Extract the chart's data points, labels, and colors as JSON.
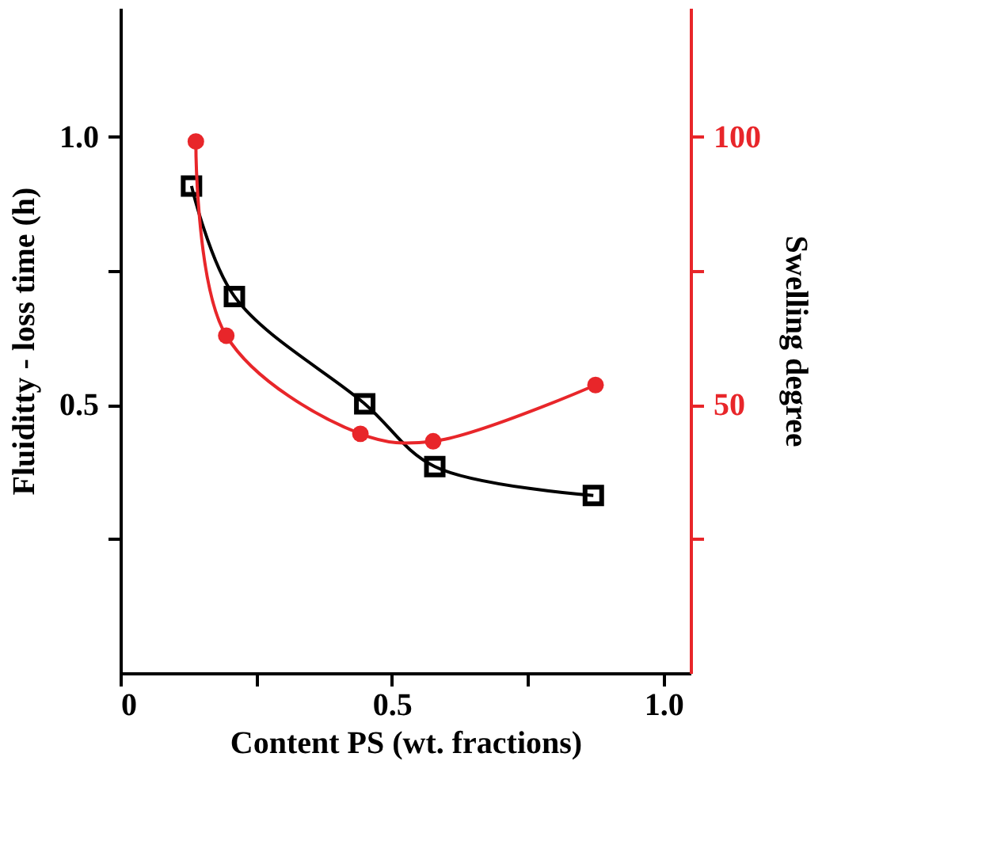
{
  "chart_data": {
    "type": "line",
    "xlabel": "Content PS (wt. fractions)",
    "ylabel": "Fluiditty - loss time (h)",
    "y2label": "Swelling degree",
    "xlim": [
      0,
      1.05
    ],
    "xticks": [
      0,
      {
        "value": 0.25,
        "label": null
      },
      {
        "value": 0.5,
        "label": "0.5"
      },
      {
        "value": 0.75,
        "label": null
      },
      {
        "value": 1.0,
        "label": "1.0"
      }
    ],
    "ylim": [
      0,
      1.24
    ],
    "yticks": [
      {
        "value": 0.25,
        "label": null
      },
      {
        "value": 0.5,
        "label": "0.5"
      },
      {
        "value": 0.75,
        "label": null
      },
      {
        "value": 1.0,
        "label": "1.0"
      }
    ],
    "y2lim": [
      0,
      124
    ],
    "y2ticks": [
      {
        "value": 25,
        "label": null
      },
      50,
      {
        "value": 75,
        "label": null
      },
      100
    ],
    "grid": false,
    "line_style": "solid",
    "series": [
      {
        "color": "#000000",
        "marker": "square",
        "x": [
          0.131,
          0.21,
          0.45,
          0.579,
          0.871
        ],
        "values": [
          0.908,
          0.702,
          0.502,
          0.385,
          0.331
        ]
      },
      {
        "color": "#e8262a",
        "marker": "circle",
        "axis": "y2",
        "x": [
          0.139,
          0.195,
          0.442,
          0.576,
          0.875
        ],
        "values": [
          99.1,
          62.9,
          44.6,
          43.2,
          53.7
        ]
      }
    ]
  }
}
